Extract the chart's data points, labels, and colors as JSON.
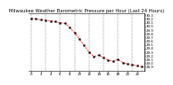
{
  "title": "Milwaukee Weather Barometric Pressure per Hour (Last 24 Hours)",
  "hours": [
    0,
    1,
    2,
    3,
    4,
    5,
    6,
    7,
    8,
    9,
    10,
    11,
    12,
    13,
    14,
    15,
    16,
    17,
    18,
    19,
    20,
    21,
    22,
    23
  ],
  "pressure": [
    30.22,
    30.2,
    30.18,
    30.17,
    30.15,
    30.13,
    30.1,
    30.08,
    29.98,
    29.82,
    29.65,
    29.48,
    29.3,
    29.18,
    29.22,
    29.15,
    29.08,
    29.05,
    29.1,
    29.02,
    28.98,
    28.95,
    28.93,
    28.9
  ],
  "ylim": [
    28.8,
    30.35
  ],
  "yticks": [
    28.9,
    29.0,
    29.1,
    29.2,
    29.3,
    29.4,
    29.5,
    29.6,
    29.7,
    29.8,
    29.9,
    30.0,
    30.1,
    30.2,
    30.3
  ],
  "ytick_labels": [
    "28.9",
    "29.0",
    "29.1",
    "29.2",
    "29.3",
    "29.4",
    "29.5",
    "29.6",
    "29.7",
    "29.8",
    "29.9",
    "30.0",
    "30.1",
    "30.2",
    "30.3"
  ],
  "xtick_positions": [
    0,
    2,
    4,
    6,
    8,
    10,
    12,
    14,
    16,
    18,
    20,
    22
  ],
  "xtick_labels": [
    "0",
    "2",
    "4",
    "6",
    "8",
    "10",
    "12",
    "14",
    "16",
    "18",
    "20",
    "22"
  ],
  "line_color": "#ff0000",
  "marker_color": "#000000",
  "grid_color": "#808080",
  "bg_color": "#ffffff",
  "title_fontsize": 3.8,
  "tick_fontsize": 2.8
}
